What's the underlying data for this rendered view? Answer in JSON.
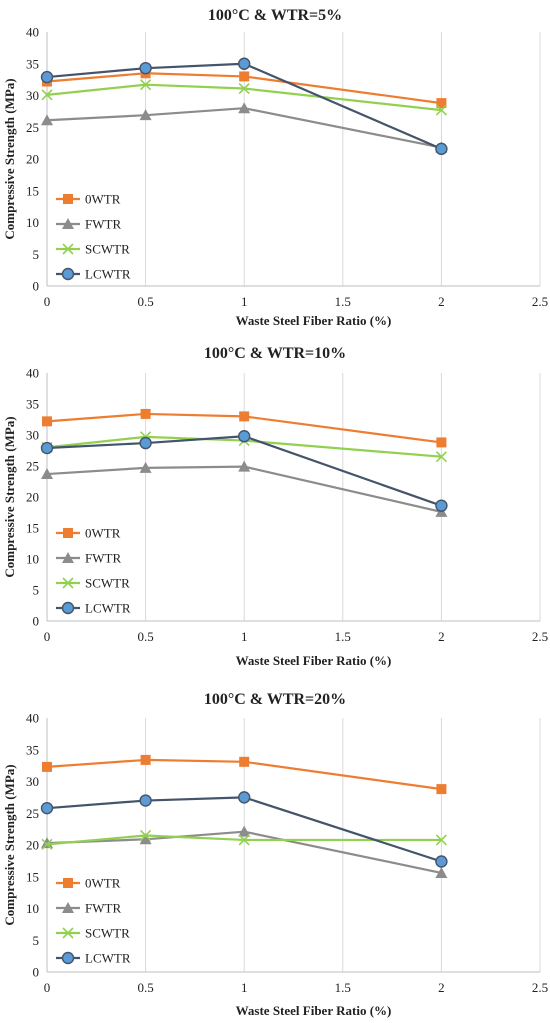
{
  "colors": {
    "0WTR": "#ED7D31",
    "FWTR": "#8C8C8C",
    "SCWTR": "#92D050",
    "LCWTR": "#44546A",
    "LCWTR_fill": "#5B9BD5",
    "grid": "#D9D9D9"
  },
  "chart_data": [
    {
      "type": "line",
      "title": "100°C & WTR=5%",
      "xlabel": "Waste Steel Fiber Ratio (%)",
      "ylabel": "Compressive Strength (MPa)",
      "xlim": [
        0,
        2.5
      ],
      "ylim": [
        0,
        40
      ],
      "x_ticks": [
        "0",
        "0.5",
        "1",
        "1.5",
        "2",
        "2.5"
      ],
      "y_ticks": [
        "0",
        "5",
        "10",
        "15",
        "20",
        "25",
        "30",
        "35",
        "40"
      ],
      "grid": "vertical",
      "legend_position": "left",
      "x": [
        0,
        0.5,
        1,
        2
      ],
      "series": [
        {
          "name": "0WTR",
          "marker": "square",
          "values": [
            32.2,
            33.5,
            33.0,
            28.8
          ]
        },
        {
          "name": "FWTR",
          "marker": "triangle",
          "values": [
            26.1,
            26.9,
            28.0,
            21.8
          ]
        },
        {
          "name": "SCWTR",
          "marker": "x",
          "values": [
            30.1,
            31.7,
            31.1,
            27.7
          ]
        },
        {
          "name": "LCWTR",
          "marker": "circle",
          "values": [
            32.9,
            34.3,
            35.0,
            21.6
          ]
        }
      ]
    },
    {
      "type": "line",
      "title": "100°C & WTR=10%",
      "xlabel": "Waste Steel Fiber Ratio (%)",
      "ylabel": "Compressive Strength (MPa)",
      "xlim": [
        0,
        2.5
      ],
      "ylim": [
        0,
        40
      ],
      "x_ticks": [
        "0",
        "0.5",
        "1",
        "1.5",
        "2",
        "2.5"
      ],
      "y_ticks": [
        "0",
        "5",
        "10",
        "15",
        "20",
        "25",
        "30",
        "35",
        "40"
      ],
      "grid": "vertical",
      "legend_position": "left",
      "x": [
        0,
        0.5,
        1,
        2
      ],
      "series": [
        {
          "name": "0WTR",
          "marker": "square",
          "values": [
            32.2,
            33.4,
            33.0,
            28.8
          ]
        },
        {
          "name": "FWTR",
          "marker": "triangle",
          "values": [
            23.7,
            24.7,
            24.9,
            17.6
          ]
        },
        {
          "name": "SCWTR",
          "marker": "x",
          "values": [
            28.0,
            29.7,
            29.1,
            26.5
          ]
        },
        {
          "name": "LCWTR",
          "marker": "circle",
          "values": [
            27.9,
            28.7,
            29.8,
            18.6
          ]
        }
      ]
    },
    {
      "type": "line",
      "title": "100°C & WTR=20%",
      "xlabel": "Waste Steel Fiber Ratio (%)",
      "ylabel": "Compressive Strength (MPa)",
      "xlim": [
        0,
        2.5
      ],
      "ylim": [
        0,
        40
      ],
      "x_ticks": [
        "0",
        "0.5",
        "1",
        "1.5",
        "2",
        "2.5"
      ],
      "y_ticks": [
        "0",
        "5",
        "10",
        "15",
        "20",
        "25",
        "30",
        "35",
        "40"
      ],
      "grid": "vertical",
      "legend_position": "left",
      "x": [
        0,
        0.5,
        1,
        2
      ],
      "series": [
        {
          "name": "0WTR",
          "marker": "square",
          "values": [
            32.3,
            33.4,
            33.1,
            28.8
          ]
        },
        {
          "name": "FWTR",
          "marker": "triangle",
          "values": [
            20.3,
            20.9,
            22.1,
            15.6
          ]
        },
        {
          "name": "SCWTR",
          "marker": "x",
          "values": [
            20.1,
            21.5,
            20.8,
            20.8
          ]
        },
        {
          "name": "LCWTR",
          "marker": "circle",
          "values": [
            25.8,
            27.0,
            27.5,
            17.4
          ]
        }
      ]
    }
  ]
}
